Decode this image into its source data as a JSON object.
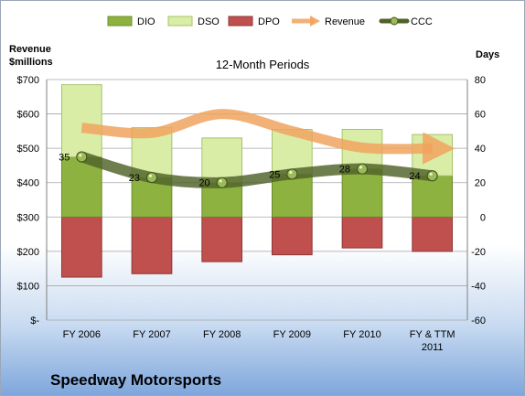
{
  "chart_data": {
    "type": "bar",
    "subtitle": "12-Month Periods",
    "company": "Speedway Motorsports",
    "left_axis_label": [
      "Revenue",
      "$millions"
    ],
    "right_axis_label": "Days",
    "categories": [
      [
        "FY 2006"
      ],
      [
        "FY 2007"
      ],
      [
        "FY 2008"
      ],
      [
        "FY 2009"
      ],
      [
        "FY 2010"
      ],
      [
        "FY & TTM",
        "2011"
      ]
    ],
    "left_axis": {
      "min": 0,
      "max": 700,
      "step": 100,
      "tick_labels": [
        "$-",
        "$100",
        "$200",
        "$300",
        "$400",
        "$500",
        "$600",
        "$700"
      ]
    },
    "right_axis": {
      "min": -60,
      "max": 80,
      "step": 20,
      "tick_labels": [
        "-60",
        "-40",
        "-20",
        "0",
        "20",
        "40",
        "60",
        "80"
      ]
    },
    "grid": true,
    "legend_position": "top",
    "series": [
      {
        "name": "DIO",
        "axis": "right",
        "kind": "stacked-bar",
        "color": "#8DB23F",
        "values": [
          35,
          23,
          20,
          25,
          28,
          24
        ]
      },
      {
        "name": "DSO",
        "axis": "right",
        "kind": "stacked-bar",
        "color": "#D9EDA7",
        "values": [
          42,
          29,
          26,
          26,
          23,
          24
        ]
      },
      {
        "name": "DPO",
        "axis": "right",
        "kind": "negative-bar",
        "color": "#C0504D",
        "values": [
          -35,
          -33,
          -26,
          -22,
          -18,
          -20
        ]
      },
      {
        "name": "Revenue",
        "axis": "left",
        "kind": "arrow-line",
        "color": "#F0A35E",
        "values": [
          560,
          545,
          600,
          550,
          502,
          500
        ]
      },
      {
        "name": "CCC",
        "axis": "right",
        "kind": "line",
        "color": "#4F6228",
        "values": [
          35,
          23,
          20,
          25,
          28,
          24
        ]
      }
    ],
    "data_labels": [
      "35",
      "23",
      "20",
      "25",
      "28",
      "24"
    ]
  }
}
